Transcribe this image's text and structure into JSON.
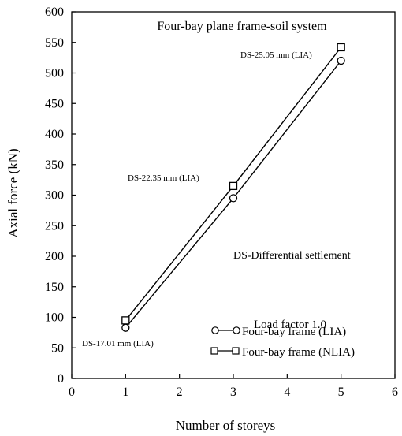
{
  "chart_data": {
    "type": "line",
    "title": "Four-bay plane frame-soil system",
    "xlabel": "Number of storeys",
    "ylabel": "Axial force (kN)",
    "xlim": [
      0,
      6
    ],
    "ylim": [
      0,
      600
    ],
    "x_ticks": [
      "0",
      "1",
      "2",
      "3",
      "4",
      "5",
      "6"
    ],
    "y_ticks": [
      "0",
      "50",
      "100",
      "150",
      "200",
      "250",
      "300",
      "350",
      "400",
      "450",
      "500",
      "550",
      "600"
    ],
    "grid": false,
    "legend_title": "Load factor 1.0",
    "legend_position": "bottom-right",
    "series": [
      {
        "name": "Four-bay frame (LIA)",
        "marker": "circle",
        "x": [
          1,
          3,
          5
        ],
        "y": [
          83,
          295,
          520
        ]
      },
      {
        "name": "Four-bay frame (NLIA)",
        "marker": "square",
        "x": [
          1,
          3,
          5
        ],
        "y": [
          95,
          315,
          542
        ]
      }
    ],
    "annotations": [
      {
        "text": "DS-17.01 mm (LIA)",
        "x": 1,
        "y": 83
      },
      {
        "text": "DS-22.35 mm (LIA)",
        "x": 3,
        "y": 315
      },
      {
        "text": "DS-25.05 mm (LIA)",
        "x": 5,
        "y": 542
      },
      {
        "text": "DS-Differential settlement"
      }
    ]
  }
}
